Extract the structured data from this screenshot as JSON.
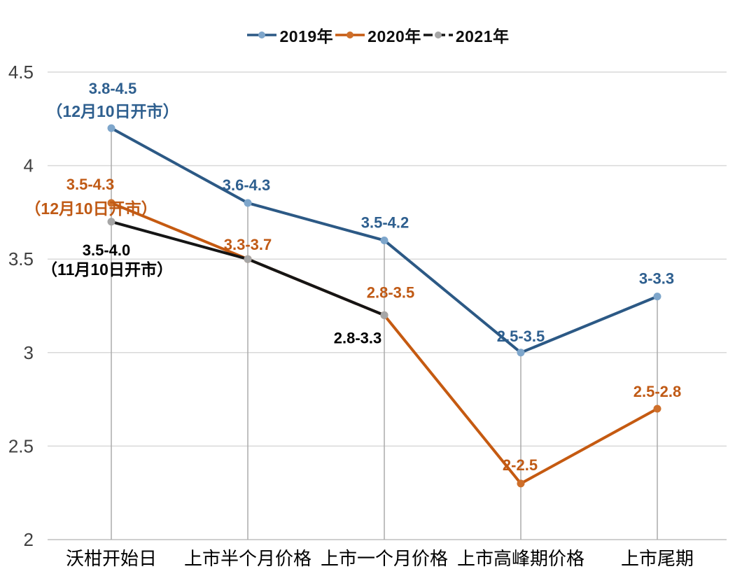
{
  "chart_data": {
    "type": "line",
    "title": "",
    "categories": [
      "沃柑开始日",
      "上市半个月价格",
      "上市一个月价格",
      "上市高峰期价格",
      "上市尾期"
    ],
    "ylim": [
      2,
      4.5
    ],
    "yticks": [
      4.5,
      4,
      3.5,
      3,
      2.5,
      2
    ],
    "grid": true,
    "drop_lines": true,
    "legend_position": "top",
    "colors": {
      "gridline": "#D9D9D9",
      "axis_line": "#BFBFBF",
      "drop_line": "#ABABAB",
      "tick_text": "#404040"
    },
    "series": [
      {
        "id": "2019",
        "name": "2019年",
        "line_color": "#2C5985",
        "marker_color": "#7EA6CB",
        "label_color": "#2E5F8F",
        "legend_dash": false,
        "values": [
          4.2,
          3.8,
          3.6,
          3.0,
          3.3
        ],
        "point_labels": [
          {
            "text": "3.8-4.5",
            "dx": 2,
            "dy": -57
          },
          {
            "text": "3.6-4.3",
            "dx": -2,
            "dy": -26
          },
          {
            "text": "3.5-4.2",
            "dx": 1,
            "dy": -26
          },
          {
            "text": "2.5-3.5",
            "dx": 0,
            "dy": -24
          },
          {
            "text": "3-3.3",
            "dx": -1,
            "dy": -26
          }
        ],
        "annotation": {
          "text": "（12月10日开市）",
          "point_index": 0,
          "dx": 2,
          "dy": -25
        }
      },
      {
        "id": "2020",
        "name": "2020年",
        "line_color": "#C55A11",
        "marker_color": "#CE6F2A",
        "label_color": "#C05A15",
        "legend_dash": false,
        "values": [
          3.8,
          3.5,
          3.2,
          2.3,
          2.7
        ],
        "point_labels": [
          {
            "text": "3.5-4.3",
            "dx": -30,
            "dy": -27
          },
          {
            "text": "3.3-3.7",
            "dx": 0,
            "dy": -21
          },
          {
            "text": "2.8-3.5",
            "dx": 9,
            "dy": -33
          },
          {
            "text": "2-2.5",
            "dx": -1,
            "dy": -27
          },
          {
            "text": "2.5-2.8",
            "dx": 0,
            "dy": -25
          }
        ],
        "annotation": {
          "text": "（12月10日开市）",
          "point_index": 0,
          "dx": -29,
          "dy": 7
        }
      },
      {
        "id": "2021",
        "name": "2021年",
        "line_color": "#151515",
        "marker_color": "#A6A6A6",
        "label_color": "#000000",
        "legend_dash": true,
        "values": [
          3.7,
          3.5,
          3.2,
          null,
          null
        ],
        "point_labels": [
          {
            "text": "3.5-4.0",
            "dx": -7,
            "dy": 40
          },
          null,
          {
            "text": "2.8-3.3",
            "dx": -38,
            "dy": 32
          },
          null,
          null
        ],
        "annotation": {
          "text": "（11月10日开市）",
          "point_index": 0,
          "dx": -6,
          "dy": 67
        }
      }
    ]
  }
}
